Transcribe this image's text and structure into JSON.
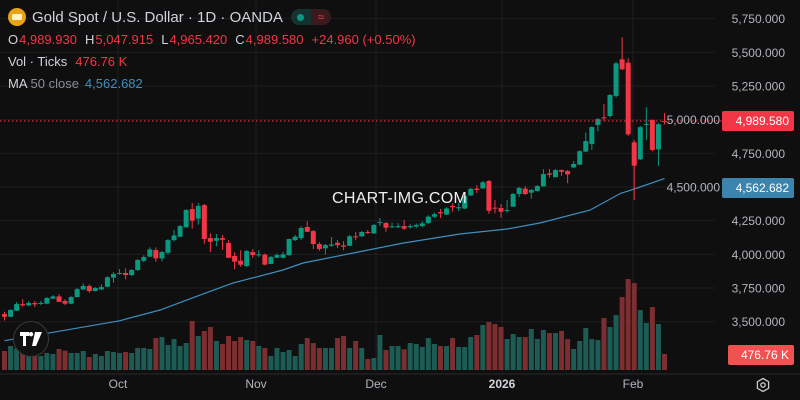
{
  "header": {
    "title": "Gold Spot / U.S. Dollar · 1D · OANDA",
    "symbol_icon": "gold-bars-icon",
    "market_status_icon": "green-dot-icon",
    "delay_icon": "approx-icon",
    "delay_glyph": "≈",
    "ohlc": {
      "o_label": "O",
      "o": "4,989.930",
      "h_label": "H",
      "h": "5,047.915",
      "l_label": "L",
      "l": "4,965.420",
      "c_label": "C",
      "c": "4,989.580",
      "change": "+24.960 (+0.50%)"
    },
    "volume": {
      "label": "Vol · Ticks",
      "value": "476.76 K"
    },
    "ma": {
      "label": "MA",
      "params": "50 close",
      "value": "4,562.682"
    }
  },
  "watermark": "CHART-IMG.COM",
  "logo_text": "TV",
  "price_tag": "4,989.580",
  "ma_tag": "4,562.682",
  "volume_tag": "476.76 K",
  "colors": {
    "up": "#089981",
    "down": "#f23645",
    "ma": "#3d8fc1",
    "vol_up": "#1d5c55",
    "vol_down": "#7c2e30",
    "background": "#0f0f0f"
  },
  "chart_data": {
    "type": "candlestick",
    "interval": "1D",
    "y_axis": {
      "ticks": [
        3500,
        3750,
        4000,
        4250,
        4500,
        4750,
        5000,
        5250,
        5500,
        5750
      ],
      "tick_labels": [
        "3,500.000",
        "3,750.000",
        "4,000.000",
        "4,250.000",
        "4,500.000",
        "4,750.000",
        "5,000.000",
        "5,250.000",
        "5,500.000",
        "5,750.000"
      ],
      "scale": "linear"
    },
    "x_axis": {
      "tick_labels": [
        "Oct",
        "Nov",
        "Dec",
        "2026",
        "Feb"
      ]
    },
    "grid": true,
    "last_close": 4989.58,
    "ohlc": [
      [
        3557,
        3574,
        3508,
        3537
      ],
      [
        3537,
        3592,
        3535,
        3587
      ],
      [
        3582,
        3646,
        3579,
        3631
      ],
      [
        3631,
        3668,
        3611,
        3622
      ],
      [
        3622,
        3654,
        3616,
        3639
      ],
      [
        3639,
        3654,
        3609,
        3629
      ],
      [
        3634,
        3654,
        3624,
        3639
      ],
      [
        3634,
        3683,
        3631,
        3676
      ],
      [
        3671,
        3698,
        3668,
        3688
      ],
      [
        3688,
        3705,
        3646,
        3648
      ],
      [
        3654,
        3668,
        3624,
        3634
      ],
      [
        3634,
        3690,
        3631,
        3683
      ],
      [
        3683,
        3750,
        3681,
        3742
      ],
      [
        3740,
        3784,
        3735,
        3765
      ],
      [
        3765,
        3777,
        3715,
        3728
      ],
      [
        3728,
        3757,
        3726,
        3750
      ],
      [
        3740,
        3777,
        3735,
        3757
      ],
      [
        3760,
        3839,
        3757,
        3830
      ],
      [
        3827,
        3869,
        3789,
        3854
      ],
      [
        3854,
        3891,
        3850,
        3862
      ],
      [
        3862,
        3896,
        3815,
        3847
      ],
      [
        3847,
        3891,
        3839,
        3884
      ],
      [
        3884,
        3965,
        3876,
        3958
      ],
      [
        3953,
        3993,
        3941,
        3980
      ],
      [
        3983,
        4052,
        3980,
        4037
      ],
      [
        4032,
        4052,
        3945,
        3970
      ],
      [
        3970,
        4025,
        3948,
        4017
      ],
      [
        4012,
        4114,
        4000,
        4106
      ],
      [
        4106,
        4181,
        4096,
        4141
      ],
      [
        4131,
        4218,
        4129,
        4210
      ],
      [
        4201,
        4336,
        4198,
        4329
      ],
      [
        4336,
        4381,
        4191,
        4250
      ],
      [
        4265,
        4381,
        4220,
        4359
      ],
      [
        4366,
        4374,
        4079,
        4114
      ],
      [
        4121,
        4156,
        4017,
        4093
      ],
      [
        4101,
        4151,
        4061,
        4121
      ],
      [
        4121,
        4144,
        4035,
        4108
      ],
      [
        4084,
        4106,
        3973,
        3975
      ],
      [
        3988,
        4017,
        3889,
        3946
      ],
      [
        3953,
        4030,
        3908,
        3923
      ],
      [
        3914,
        4032,
        3906,
        4025
      ],
      [
        4017,
        4040,
        3973,
        3995
      ],
      [
        3998,
        4032,
        3980,
        4000
      ],
      [
        3998,
        4007,
        3918,
        3924
      ],
      [
        3929,
        3988,
        3927,
        3980
      ],
      [
        3975,
        4007,
        3973,
        3995
      ],
      [
        3975,
        4017,
        3970,
        4000
      ],
      [
        3995,
        4116,
        3988,
        4114
      ],
      [
        4106,
        4144,
        4099,
        4131
      ],
      [
        4121,
        4208,
        4106,
        4196
      ],
      [
        4203,
        4245,
        4166,
        4168
      ],
      [
        4173,
        4181,
        4040,
        4077
      ],
      [
        4077,
        4091,
        4027,
        4040
      ],
      [
        4045,
        4077,
        4000,
        4069
      ],
      [
        4064,
        4129,
        4057,
        4074
      ],
      [
        4086,
        4106,
        4047,
        4069
      ],
      [
        4067,
        4099,
        4030,
        4057
      ],
      [
        4064,
        4144,
        4062,
        4134
      ],
      [
        4134,
        4166,
        4106,
        4126
      ],
      [
        4134,
        4173,
        4129,
        4166
      ],
      [
        4166,
        4181,
        4151,
        4161
      ],
      [
        4156,
        4225,
        4151,
        4218
      ],
      [
        4235,
        4270,
        4210,
        4240
      ],
      [
        4233,
        4240,
        4168,
        4198
      ],
      [
        4203,
        4235,
        4196,
        4208
      ],
      [
        4201,
        4233,
        4196,
        4210
      ],
      [
        4210,
        4255,
        4181,
        4191
      ],
      [
        4201,
        4225,
        4190,
        4210
      ],
      [
        4207,
        4230,
        4195,
        4218
      ],
      [
        4210,
        4245,
        4200,
        4230
      ],
      [
        4233,
        4290,
        4225,
        4280
      ],
      [
        4280,
        4310,
        4270,
        4298
      ],
      [
        4314,
        4337,
        4270,
        4304
      ],
      [
        4296,
        4350,
        4292,
        4340
      ],
      [
        4359,
        4380,
        4318,
        4350
      ],
      [
        4347,
        4381,
        4322,
        4350
      ],
      [
        4340,
        4440,
        4336,
        4433
      ],
      [
        4438,
        4493,
        4433,
        4486
      ],
      [
        4488,
        4513,
        4456,
        4478
      ],
      [
        4490,
        4545,
        4486,
        4535
      ],
      [
        4545,
        4552,
        4301,
        4324
      ],
      [
        4347,
        4403,
        4305,
        4342
      ],
      [
        4344,
        4374,
        4273,
        4317
      ],
      [
        4324,
        4403,
        4310,
        4329
      ],
      [
        4354,
        4456,
        4352,
        4448
      ],
      [
        4448,
        4500,
        4426,
        4493
      ],
      [
        4488,
        4507,
        4441,
        4448
      ],
      [
        4458,
        4485,
        4414,
        4478
      ],
      [
        4470,
        4515,
        4465,
        4507
      ],
      [
        4505,
        4633,
        4503,
        4596
      ],
      [
        4601,
        4633,
        4570,
        4591
      ],
      [
        4573,
        4633,
        4571,
        4626
      ],
      [
        4626,
        4630,
        4583,
        4613
      ],
      [
        4619,
        4626,
        4528,
        4594
      ],
      [
        4645,
        4693,
        4641,
        4671
      ],
      [
        4666,
        4773,
        4663,
        4766
      ],
      [
        4763,
        4904,
        4760,
        4841
      ],
      [
        4820,
        4950,
        4775,
        4945
      ],
      [
        4960,
        5012,
        4915,
        5004
      ],
      [
        5017,
        5116,
        4990,
        5013
      ],
      [
        5027,
        5190,
        5017,
        5183
      ],
      [
        5176,
        5428,
        5163,
        5418
      ],
      [
        5448,
        5611,
        5368,
        5374
      ],
      [
        5423,
        5456,
        4879,
        4891
      ],
      [
        4832,
        4849,
        4403,
        4658
      ],
      [
        4706,
        4953,
        4700,
        4944
      ],
      [
        4965,
        5092,
        4849,
        4968
      ],
      [
        4997,
        5002,
        4765,
        4775
      ],
      [
        4780,
        4975,
        4658,
        4966
      ],
      [
        4989.93,
        5047.915,
        4965.42,
        4989.58
      ]
    ],
    "volume_k": [
      566,
      715,
      645,
      546,
      695,
      566,
      417,
      506,
      477,
      626,
      576,
      506,
      506,
      566,
      387,
      477,
      417,
      566,
      536,
      506,
      536,
      506,
      655,
      655,
      626,
      953,
      983,
      745,
      923,
      715,
      804,
      1460,
      1013,
      1162,
      1281,
      864,
      775,
      1013,
      864,
      983,
      894,
      864,
      715,
      655,
      417,
      655,
      536,
      596,
      417,
      775,
      953,
      804,
      655,
      655,
      655,
      953,
      1013,
      655,
      864,
      655,
      328,
      357,
      1043,
      596,
      715,
      715,
      616,
      804,
      775,
      685,
      953,
      775,
      715,
      715,
      953,
      685,
      685,
      983,
      1043,
      1341,
      1430,
      1370,
      1281,
      923,
      1072,
      983,
      983,
      1221,
      923,
      1192,
      1102,
      1102,
      1162,
      923,
      626,
      864,
      1251,
      923,
      894,
      1549,
      1281,
      1638,
      2175,
      2711,
      2592,
      1787,
      1400,
      1877,
      1370,
      476.76
    ],
    "ma50": {
      "name": "MA 50 close",
      "bar_index": [
        0,
        7.5,
        19,
        25.7,
        32.3,
        37.7,
        46,
        49.3,
        57.6,
        65.8,
        75.2,
        83,
        88.4,
        96.7,
        101.7,
        104.5,
        109
      ],
      "values": [
        3359,
        3418,
        3507,
        3587,
        3698,
        3787,
        3884,
        3936,
        4010,
        4084,
        4151,
        4188,
        4233,
        4329,
        4452,
        4493,
        4562.682
      ]
    }
  }
}
